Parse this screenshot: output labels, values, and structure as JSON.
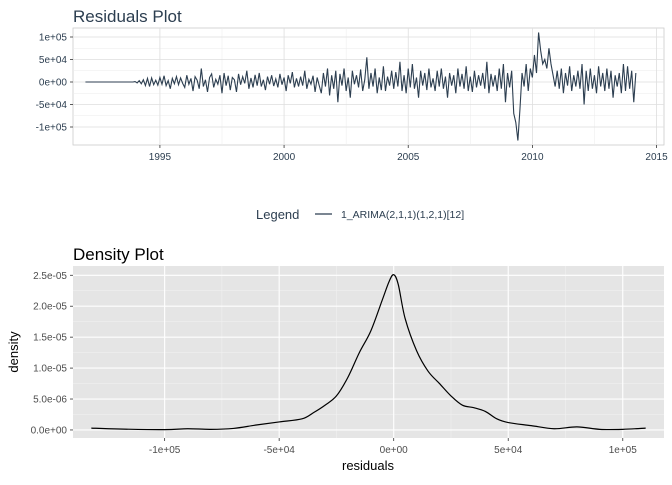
{
  "chart_data": [
    {
      "type": "line",
      "title": "Residuals Plot",
      "xlabel": "",
      "ylabel": "",
      "xlim": [
        1991.5,
        2015.3
      ],
      "ylim": [
        -140000,
        120000
      ],
      "x_ticks": [
        1995,
        2000,
        2005,
        2010,
        2015
      ],
      "y_ticks": [
        -100000,
        -50000,
        0,
        50000,
        100000
      ],
      "y_tick_labels": [
        "-1e+05",
        "-5e+04",
        "0e+00",
        "5e+04",
        "1e+05"
      ],
      "grid": true,
      "line_color": "#2c3e50",
      "legend": {
        "title": "Legend",
        "entries": [
          "1_ARIMA(2,1,1)(1,2,1)[12]"
        ],
        "placement": "bottom"
      },
      "series": [
        {
          "name": "1_ARIMA(2,1,1)(1,2,1)[12]",
          "start": 1992.0,
          "step": 0.08333,
          "values": [
            0,
            0,
            0,
            0,
            0,
            0,
            0,
            0,
            0,
            0,
            0,
            0,
            0,
            0,
            0,
            0,
            0,
            0,
            0,
            0,
            0,
            0,
            0,
            0,
            1000,
            -2000,
            3000,
            -4000,
            5000,
            -8000,
            8000,
            -10000,
            9000,
            -6000,
            4000,
            -7000,
            10000,
            -5000,
            14000,
            -8000,
            3000,
            -15000,
            8000,
            -4000,
            12000,
            -6000,
            9000,
            -3000,
            -12000,
            15000,
            -5000,
            8000,
            -20000,
            12000,
            4000,
            -15000,
            30000,
            -10000,
            5000,
            -22000,
            10000,
            18000,
            -12000,
            6000,
            -5000,
            15000,
            -25000,
            20000,
            -8000,
            14000,
            -18000,
            10000,
            5000,
            -22000,
            18000,
            -6000,
            12000,
            -3000,
            25000,
            -15000,
            9000,
            -12000,
            16000,
            -8000,
            20000,
            -10000,
            5000,
            -18000,
            12000,
            -5000,
            15000,
            -9000,
            7000,
            -12000,
            18000,
            -6000,
            10000,
            -20000,
            15000,
            -3000,
            22000,
            -12000,
            8000,
            -10000,
            12000,
            -8000,
            25000,
            -15000,
            6000,
            -5000,
            14000,
            -22000,
            10000,
            -8000,
            -25000,
            20000,
            -10000,
            30000,
            -30000,
            15000,
            -15000,
            25000,
            -45000,
            18000,
            -8000,
            30000,
            -20000,
            10000,
            -35000,
            25000,
            -5000,
            15000,
            -12000,
            28000,
            -20000,
            5000,
            55000,
            -15000,
            20000,
            -10000,
            30000,
            -25000,
            10000,
            -18000,
            35000,
            -20000,
            12000,
            -8000,
            25000,
            -15000,
            22000,
            -10000,
            45000,
            -20000,
            15000,
            -25000,
            30000,
            -12000,
            40000,
            -15000,
            10000,
            -35000,
            25000,
            -8000,
            20000,
            -18000,
            30000,
            -12000,
            8000,
            -20000,
            25000,
            -10000,
            30000,
            -15000,
            12000,
            -35000,
            20000,
            -8000,
            15000,
            -25000,
            30000,
            -10000,
            18000,
            -15000,
            35000,
            -20000,
            12000,
            -22000,
            25000,
            -12000,
            15000,
            -8000,
            20000,
            -15000,
            45000,
            -25000,
            18000,
            -10000,
            15000,
            -20000,
            30000,
            -15000,
            40000,
            -45000,
            20000,
            -12000,
            25000,
            -70000,
            -90000,
            -130000,
            -60000,
            20000,
            -10000,
            40000,
            -20000,
            30000,
            10000,
            60000,
            20000,
            110000,
            70000,
            40000,
            50000,
            30000,
            75000,
            40000,
            15000,
            -10000,
            25000,
            -15000,
            30000,
            -25000,
            20000,
            -8000,
            35000,
            -20000,
            15000,
            -10000,
            25000,
            -15000,
            40000,
            -50000,
            25000,
            -20000,
            30000,
            -15000,
            15000,
            -25000,
            35000,
            -10000,
            20000,
            -20000,
            30000,
            -15000,
            25000,
            -35000,
            15000,
            -10000,
            20000,
            -25000,
            40000,
            -20000,
            35000,
            -15000,
            25000,
            -45000,
            20000
          ]
        }
      ]
    },
    {
      "type": "area",
      "title": "Density Plot",
      "xlabel": "residuals",
      "ylabel": "density",
      "xlim": [
        -140000,
        118000
      ],
      "ylim": [
        -1.3e-06,
        2.65e-05
      ],
      "x_ticks": [
        -100000,
        -50000,
        0,
        50000,
        100000
      ],
      "x_tick_labels": [
        "-1e+05",
        "-5e+04",
        "0e+00",
        "5e+04",
        "1e+05"
      ],
      "y_ticks": [
        0,
        5e-06,
        1e-05,
        1.5e-05,
        2e-05,
        2.5e-05
      ],
      "y_tick_labels": [
        "0.0e+00",
        "5.0e-06",
        "1.0e-05",
        "1.5e-05",
        "2.0e-05",
        "2.5e-05"
      ],
      "grid": true,
      "panel_background": "#e5e5e5",
      "line_color": "#000000",
      "series": [
        {
          "x": [
            -132000,
            -120000,
            -100000,
            -90000,
            -80000,
            -70000,
            -60000,
            -50000,
            -40000,
            -35000,
            -30000,
            -25000,
            -20000,
            -15000,
            -10000,
            -5000,
            -2000,
            0,
            2000,
            5000,
            10000,
            15000,
            20000,
            25000,
            30000,
            35000,
            40000,
            45000,
            50000,
            60000,
            70000,
            80000,
            90000,
            100000,
            110000
          ],
          "values": [
            3e-07,
            1.5e-07,
            5e-08,
            2e-07,
            1e-07,
            2.5e-07,
            8e-07,
            1.3e-06,
            1.8e-06,
            2.8e-06,
            4e-06,
            5.5e-06,
            8.5e-06,
            1.25e-05,
            1.6e-05,
            2.1e-05,
            2.4e-05,
            2.51e-05,
            2.35e-05,
            1.8e-05,
            1.28e-05,
            9.5e-06,
            7.5e-06,
            5.5e-06,
            4e-06,
            3.6e-06,
            3e-06,
            1.8e-06,
            1.2e-06,
            7e-07,
            2e-07,
            5e-07,
            1e-07,
            1e-07,
            3e-07
          ]
        }
      ]
    }
  ]
}
